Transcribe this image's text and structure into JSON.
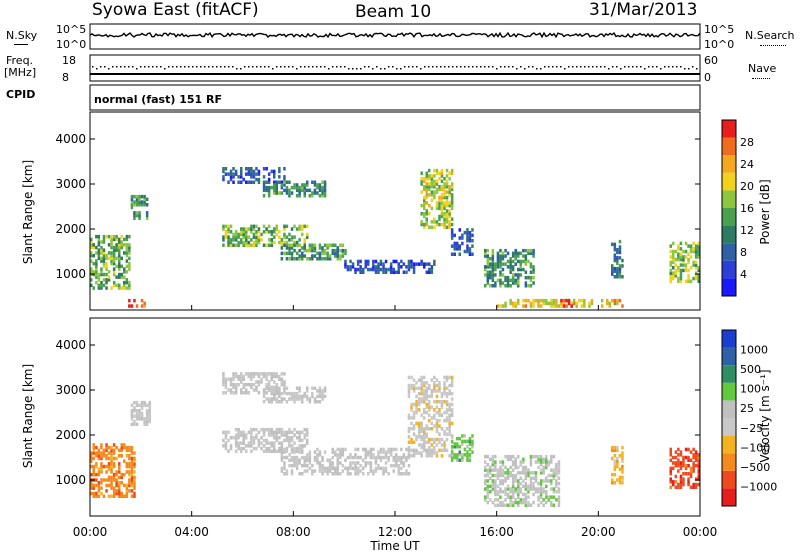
{
  "header": {
    "station": "Syowa East (fitACF)",
    "beam": "Beam 10",
    "date": "31/Mar/2013"
  },
  "top_panels": {
    "nsky_label": "N.Sky",
    "nsky_ticks": [
      "10^5",
      "10^0"
    ],
    "nsearch_label": "N.Search",
    "nsearch_ticks": [
      "10^5",
      "10^0"
    ],
    "freq_label_1": "Freq.",
    "freq_label_2": "[MHz]",
    "freq_ticks": [
      "18",
      "8"
    ],
    "nave_label": "Nave",
    "nave_ticks": [
      "60",
      "0"
    ],
    "cpid_label": "CPID",
    "cpid_text": "normal (fast) 151 RF"
  },
  "colorbars": {
    "colors": {
      "power": [
        "#1a1aff",
        "#2e3fd8",
        "#2f61a8",
        "#2f7a63",
        "#4aa050",
        "#8dc63f",
        "#f2d21b",
        "#f4a81e",
        "#ef6b1d",
        "#e81d1d"
      ],
      "velocity": [
        "#e81d1d",
        "#ef4a1d",
        "#f48a1e",
        "#f4b31e",
        "#c8c8c8",
        "#c0c0c0",
        "#62c93f",
        "#2f8f63",
        "#2f61a8",
        "#1a3fd0"
      ]
    }
  },
  "chart_data": [
    {
      "type": "heatmap",
      "title": "",
      "xlabel": "",
      "ylabel": "Slant Range [km]",
      "xlim": [
        "00:00",
        "24:00"
      ],
      "ylim": [
        200,
        4600
      ],
      "yticks": [
        "1000",
        "2000",
        "3000",
        "4000"
      ],
      "colorbar": {
        "label": "Power [dB]",
        "ticks": [
          "28",
          "24",
          "20",
          "16",
          "12",
          "8",
          "4"
        ],
        "range": [
          0,
          30
        ]
      },
      "regions": [
        {
          "t": [
            0.0,
            1.6
          ],
          "r": [
            650,
            1800
          ],
          "v": 14
        },
        {
          "t": [
            1.5,
            2.2
          ],
          "r": [
            250,
            380
          ],
          "v": 27
        },
        {
          "t": [
            1.6,
            2.3
          ],
          "r": [
            2200,
            2700
          ],
          "v": 12
        },
        {
          "t": [
            5.2,
            7.6
          ],
          "r": [
            3000,
            3350
          ],
          "v": 6
        },
        {
          "t": [
            6.8,
            9.2
          ],
          "r": [
            2700,
            3050
          ],
          "v": 11
        },
        {
          "t": [
            5.2,
            8.5
          ],
          "r": [
            1600,
            2050
          ],
          "v": 15
        },
        {
          "t": [
            7.5,
            10.0
          ],
          "r": [
            1300,
            1650
          ],
          "v": 12
        },
        {
          "t": [
            10.0,
            13.5
          ],
          "r": [
            1000,
            1300
          ],
          "v": 6
        },
        {
          "t": [
            13.0,
            14.2
          ],
          "r": [
            2000,
            3300
          ],
          "v": 17
        },
        {
          "t": [
            14.2,
            15.0
          ],
          "r": [
            1400,
            2000
          ],
          "v": 7
        },
        {
          "t": [
            15.5,
            17.5
          ],
          "r": [
            700,
            1500
          ],
          "v": 12
        },
        {
          "t": [
            16.0,
            21.0
          ],
          "r": [
            250,
            380
          ],
          "v": 20
        },
        {
          "t": [
            18.5,
            19.0
          ],
          "r": [
            250,
            380
          ],
          "v": 27
        },
        {
          "t": [
            20.5,
            21.0
          ],
          "r": [
            900,
            1700
          ],
          "v": 9
        },
        {
          "t": [
            22.8,
            24.0
          ],
          "r": [
            800,
            1700
          ],
          "v": 16
        }
      ]
    },
    {
      "type": "heatmap",
      "title": "",
      "xlabel": "Time UT",
      "ylabel": "Slant Range [km]",
      "xlim": [
        "00:00",
        "24:00"
      ],
      "ylim": [
        200,
        4600
      ],
      "xticks": [
        "00:00",
        "04:00",
        "08:00",
        "12:00",
        "16:00",
        "20:00",
        "00:00"
      ],
      "yticks": [
        "1000",
        "2000",
        "3000",
        "4000"
      ],
      "colorbar": {
        "label": "Velocity [m s⁻¹]",
        "ticks": [
          "1000",
          "500",
          "100",
          "25",
          "−25",
          "−100",
          "−500",
          "−1000"
        ],
        "range": [
          -1000,
          1000
        ]
      },
      "regions": [
        {
          "t": [
            0.0,
            1.8
          ],
          "r": [
            600,
            1800
          ],
          "v": -500
        },
        {
          "t": [
            1.6,
            2.4
          ],
          "r": [
            2200,
            2700
          ],
          "v": 0
        },
        {
          "t": [
            5.2,
            7.6
          ],
          "r": [
            2900,
            3350
          ],
          "v": 0
        },
        {
          "t": [
            6.8,
            9.2
          ],
          "r": [
            2700,
            3050
          ],
          "v": 0
        },
        {
          "t": [
            5.2,
            8.5
          ],
          "r": [
            1600,
            2100
          ],
          "v": 0
        },
        {
          "t": [
            7.5,
            12.5
          ],
          "r": [
            1100,
            1650
          ],
          "v": 0
        },
        {
          "t": [
            12.5,
            14.2
          ],
          "r": [
            1500,
            3300
          ],
          "v": -100
        },
        {
          "t": [
            14.2,
            15.0
          ],
          "r": [
            1400,
            2000
          ],
          "v": 300
        },
        {
          "t": [
            15.5,
            18.5
          ],
          "r": [
            400,
            1500
          ],
          "v": 100
        },
        {
          "t": [
            20.5,
            21.0
          ],
          "r": [
            900,
            1700
          ],
          "v": -300
        },
        {
          "t": [
            22.8,
            24.0
          ],
          "r": [
            800,
            1700
          ],
          "v": -700
        }
      ]
    }
  ]
}
